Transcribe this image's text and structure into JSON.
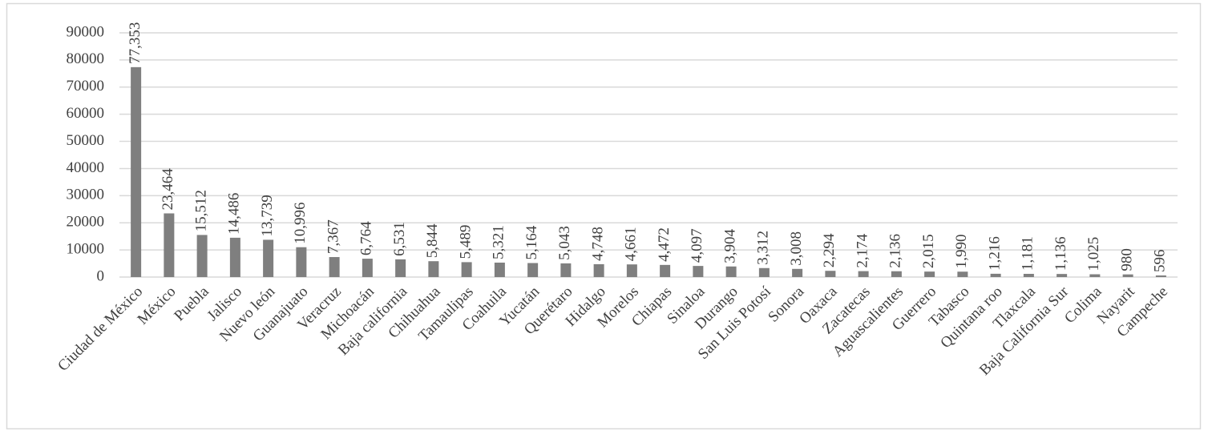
{
  "chart_data": {
    "type": "bar",
    "categories": [
      "Ciudad de México",
      "México",
      "Puebla",
      "Jalisco",
      "Nuevo león",
      "Guanajuato",
      "Veracruz",
      "Michoacán",
      "Baja california",
      "Chihuahua",
      "Tamaulipas",
      "Coahuila",
      "Yucatán",
      "Querétaro",
      "Hidalgo",
      "Morelos",
      "Chiapas",
      "Sinaloa",
      "Durango",
      "San Luis Potosí",
      "Sonora",
      "Oaxaca",
      "Zacatecas",
      "Aguascalientes",
      "Guerrero",
      "Tabasco",
      "Quintana roo",
      "Tlaxcala",
      "Baja California Sur",
      "Colima",
      "Nayarit",
      "Campeche"
    ],
    "values": [
      77353,
      23464,
      15512,
      14486,
      13739,
      10996,
      7367,
      6764,
      6531,
      5844,
      5489,
      5321,
      5164,
      5043,
      4748,
      4661,
      4472,
      4097,
      3904,
      3312,
      3008,
      2294,
      2174,
      2136,
      2015,
      1990,
      1216,
      1181,
      1136,
      1025,
      980,
      596
    ],
    "value_labels": [
      "77,353",
      "23,464",
      "15,512",
      "14,486",
      "13,739",
      "10,996",
      "7,367",
      "6,764",
      "6,531",
      "5,844",
      "5,489",
      "5,321",
      "5,164",
      "5,043",
      "4,748",
      "4,661",
      "4,472",
      "4,097",
      "3,904",
      "3,312",
      "3,008",
      "2,294",
      "2,174",
      "2,136",
      "2,015",
      "1,990",
      "1,216",
      "1,181",
      "1,136",
      "1,025",
      "980",
      "596"
    ],
    "color": "#7f7f7f",
    "ylim": [
      0,
      90000
    ],
    "yticks": [
      0,
      10000,
      20000,
      30000,
      40000,
      50000,
      60000,
      70000,
      80000,
      90000
    ],
    "grid": true
  }
}
